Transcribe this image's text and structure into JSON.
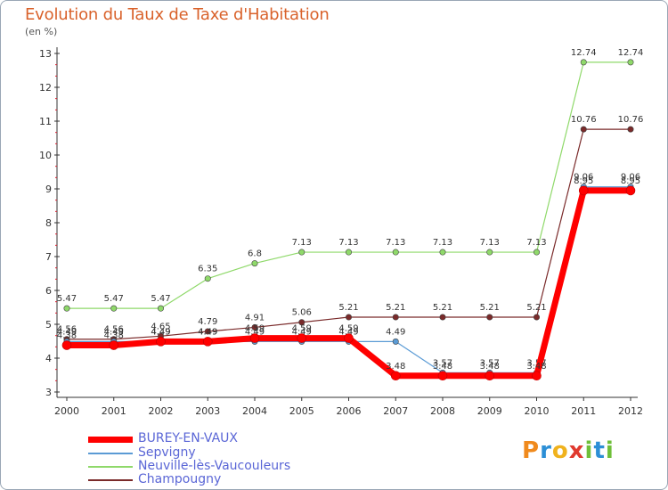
{
  "chart_data": {
    "type": "line",
    "title": "Evolution du Taux de Taxe d'Habitation",
    "subtitle": "(en %)",
    "x": [
      "2000",
      "2001",
      "2002",
      "2003",
      "2004",
      "2005",
      "2006",
      "2007",
      "2008",
      "2009",
      "2010",
      "2011",
      "2012"
    ],
    "ylim": [
      3,
      13
    ],
    "yticks": [
      "3",
      "4",
      "5",
      "6",
      "7",
      "8",
      "9",
      "10",
      "11",
      "12",
      "13"
    ],
    "grid": false,
    "legend_position": "bottom-left",
    "series": [
      {
        "name": "BUREY-EN-VAUX",
        "color": "#ff0000",
        "values": [
          4.38,
          4.38,
          4.49,
          4.49,
          4.59,
          4.59,
          4.59,
          3.48,
          3.48,
          3.48,
          3.48,
          8.95,
          8.95
        ],
        "labels": [
          "4.38",
          "4.38",
          "4.49",
          "4.49",
          "4.59",
          "4.59",
          "4.59",
          "3.48",
          "3.48",
          "3.48",
          "3.48",
          "8.95",
          "8.95"
        ]
      },
      {
        "name": "Sepvigny",
        "color": "#5b9bd5",
        "values": [
          4.49,
          4.49,
          4.49,
          4.49,
          4.49,
          4.49,
          4.49,
          4.49,
          3.57,
          3.57,
          3.57,
          9.06,
          9.06
        ],
        "labels": [
          "4.49",
          "4.49",
          "4.49",
          "4.49",
          "4.49",
          "4.49",
          "4.49",
          "4.49",
          "3.57",
          "3.57",
          "3.57",
          "9.06",
          "9.06"
        ]
      },
      {
        "name": "Neuville-lès-Vaucouleurs",
        "color": "#8fd96a",
        "values": [
          5.47,
          5.47,
          5.47,
          6.35,
          6.8,
          7.13,
          7.13,
          7.13,
          7.13,
          7.13,
          7.13,
          12.74,
          12.74
        ],
        "labels": [
          "5.47",
          "5.47",
          "5.47",
          "6.35",
          "6.8",
          "7.13",
          "7.13",
          "7.13",
          "7.13",
          "7.13",
          "7.13",
          "12.74",
          "12.74"
        ]
      },
      {
        "name": "Champougny",
        "color": "#7a2a2a",
        "values": [
          4.56,
          4.56,
          4.65,
          4.79,
          4.91,
          5.06,
          5.21,
          5.21,
          5.21,
          5.21,
          5.21,
          10.76,
          10.76
        ],
        "labels": [
          "4.56",
          "4.56",
          "4.65",
          "4.79",
          "4.91",
          "5.06",
          "5.21",
          "5.21",
          "5.21",
          "5.21",
          "5.21",
          "10.76",
          "10.76"
        ]
      }
    ]
  },
  "logo": {
    "letters": [
      "P",
      "r",
      "o",
      "x",
      "i",
      "t",
      "i"
    ]
  }
}
